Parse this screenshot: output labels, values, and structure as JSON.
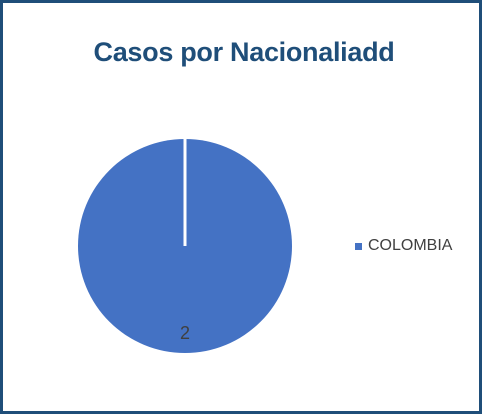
{
  "chart_data": {
    "type": "pie",
    "title": "Casos por Nacionaliadd",
    "categories": [
      "COLOMBIA"
    ],
    "values": [
      2
    ],
    "data_labels": [
      "2"
    ],
    "colors": [
      "#4472c4"
    ],
    "legend_position": "right"
  },
  "colors": {
    "border": "#1f4e79",
    "title": "#1f4e79",
    "legend_text": "#404040"
  }
}
